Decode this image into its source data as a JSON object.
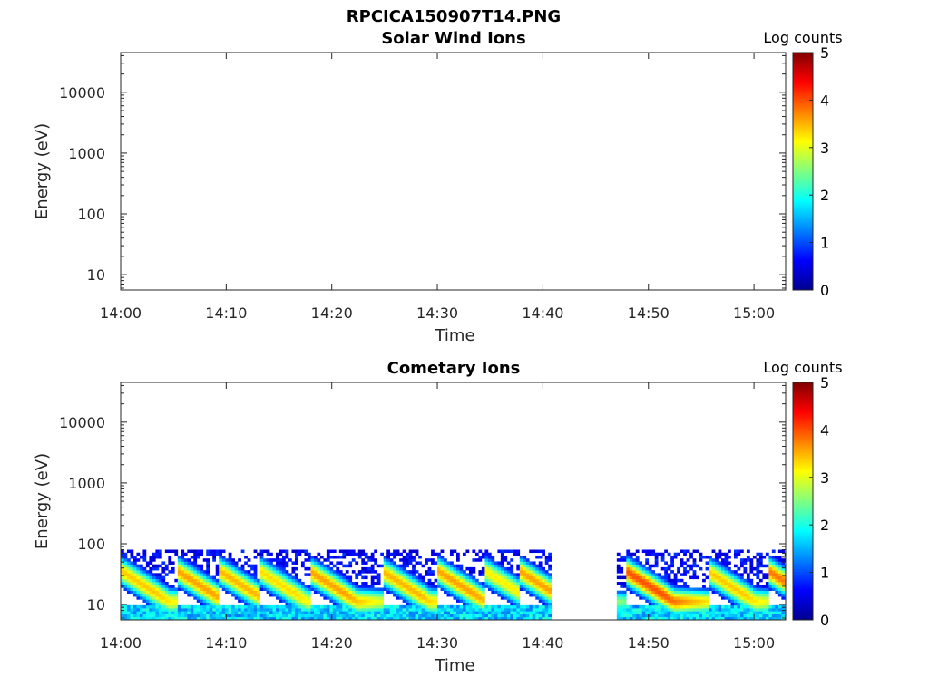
{
  "figure_title": "RPCICA150907T14.PNG",
  "colors": {
    "colormap": [
      "#00008f",
      "#0000ff",
      "#0080ff",
      "#00ffff",
      "#80ff80",
      "#ffff00",
      "#ff8000",
      "#ff0000",
      "#800000"
    ],
    "axis": "#262626",
    "background": "#ffffff"
  },
  "chart_data": [
    {
      "type": "heatmap",
      "title": "Solar Wind Ions",
      "xlabel": "Time",
      "ylabel": "Energy (eV)",
      "x_ticks": [
        "14:00",
        "14:10",
        "14:20",
        "14:30",
        "14:40",
        "14:50",
        "15:00"
      ],
      "y_ticks": [
        "10",
        "100",
        "1000",
        "10000"
      ],
      "ylim": [
        5.6,
        45000
      ],
      "y_scale": "log",
      "xlim_minutes": [
        0,
        63
      ],
      "colorbar": {
        "label": "Log counts",
        "range": [
          0,
          5
        ],
        "ticks": [
          "0",
          "1",
          "2",
          "3",
          "4",
          "5"
        ]
      },
      "data_segments": []
    },
    {
      "type": "heatmap",
      "title": "Cometary Ions",
      "xlabel": "Time",
      "ylabel": "Energy (eV)",
      "x_ticks": [
        "14:00",
        "14:10",
        "14:20",
        "14:30",
        "14:40",
        "14:50",
        "15:00"
      ],
      "y_ticks": [
        "10",
        "100",
        "1000",
        "10000"
      ],
      "ylim": [
        5.6,
        45000
      ],
      "y_scale": "log",
      "xlim_minutes": [
        0,
        63
      ],
      "colorbar": {
        "label": "Log counts",
        "range": [
          0,
          5
        ],
        "ticks": [
          "0",
          "1",
          "2",
          "3",
          "4",
          "5"
        ]
      },
      "energy_range_eV": [
        5.6,
        80
      ],
      "data_segments": [
        [
          0,
          40.8
        ],
        [
          47.0,
          63.0
        ]
      ],
      "peak_log_counts": 4.0,
      "bursts": [
        {
          "start_min": 0.0,
          "peak_log_counts": 3.4
        },
        {
          "start_min": 5.3,
          "peak_log_counts": 3.6
        },
        {
          "start_min": 9.3,
          "peak_log_counts": 3.5
        },
        {
          "start_min": 13.1,
          "peak_log_counts": 3.3
        },
        {
          "start_min": 17.8,
          "peak_log_counts": 3.6
        },
        {
          "start_min": 24.7,
          "peak_log_counts": 3.5
        },
        {
          "start_min": 30.0,
          "peak_log_counts": 3.6
        },
        {
          "start_min": 34.5,
          "peak_log_counts": 3.2
        },
        {
          "start_min": 37.7,
          "peak_log_counts": 3.6
        },
        {
          "start_min": 47.8,
          "peak_log_counts": 4.0
        },
        {
          "start_min": 55.5,
          "peak_log_counts": 3.4
        },
        {
          "start_min": 61.3,
          "peak_log_counts": 3.8
        }
      ]
    }
  ]
}
